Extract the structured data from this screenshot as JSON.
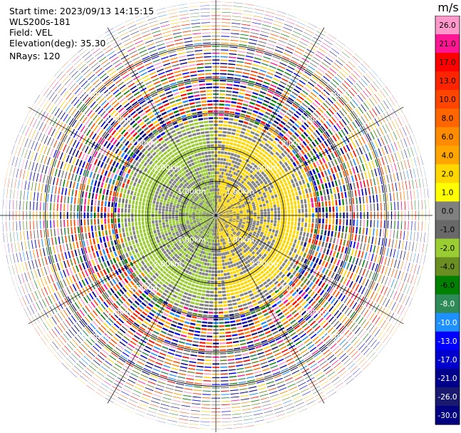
{
  "info": {
    "start_time": "Start time: 2023/09/13 14:15:15",
    "instrument": "WLS200s-181",
    "field": "Field: VEL",
    "elevation": "Elevation(deg): 35.30",
    "nrays": "NRays: 120"
  },
  "chart_data": {
    "type": "ppi_scan",
    "title": "",
    "field": "VEL",
    "units": "m/s",
    "range_rings": [
      {
        "label": "1.00km",
        "value": 1.0
      },
      {
        "label": "2.00km",
        "value": 2.0
      },
      {
        "label": "3.00km",
        "value": 3.0
      },
      {
        "label": "4.00km",
        "value": 4.0
      },
      {
        "label": "5.00km",
        "value": 5.0
      }
    ],
    "max_range_km": 6.35,
    "n_rays": 120,
    "gates": 63,
    "spokes_deg": [
      0,
      30,
      60,
      90,
      120,
      150,
      180,
      210,
      240,
      270,
      300,
      330
    ],
    "colorbar": {
      "unit": "m/s",
      "ticks": [
        "26.0",
        "21.0",
        "17.0",
        "13.0",
        "10.0",
        "8.0",
        "6.0",
        "4.0",
        "2.0",
        "1.0",
        "0.0",
        "-1.0",
        "-2.0",
        "-4.0",
        "-6.0",
        "-8.0",
        "-10.0",
        "-13.0",
        "-17.0",
        "-21.0",
        "-26.0",
        "-30.0"
      ],
      "bins": [
        {
          "min": 26,
          "max": 30,
          "color": "#ff99cc"
        },
        {
          "min": 21,
          "max": 26,
          "color": "#ff1493"
        },
        {
          "min": 17,
          "max": 21,
          "color": "#ff0000"
        },
        {
          "min": 13,
          "max": 17,
          "color": "#ff2400"
        },
        {
          "min": 10,
          "max": 13,
          "color": "#ff4500"
        },
        {
          "min": 8,
          "max": 10,
          "color": "#ff6600"
        },
        {
          "min": 6,
          "max": 8,
          "color": "#ff8c00"
        },
        {
          "min": 4,
          "max": 6,
          "color": "#ffa500"
        },
        {
          "min": 2,
          "max": 4,
          "color": "#ffd700"
        },
        {
          "min": 1,
          "max": 2,
          "color": "#ffff00"
        },
        {
          "min": 0,
          "max": 1,
          "color": "#808080"
        },
        {
          "min": -1,
          "max": 0,
          "color": "#696969"
        },
        {
          "min": -2,
          "max": -1,
          "color": "#9acd32"
        },
        {
          "min": -4,
          "max": -2,
          "color": "#6b8e23"
        },
        {
          "min": -6,
          "max": -4,
          "color": "#008000"
        },
        {
          "min": -8,
          "max": -6,
          "color": "#2e8b57"
        },
        {
          "min": -10,
          "max": -8,
          "color": "#1e90ff"
        },
        {
          "min": -13,
          "max": -10,
          "color": "#0000ff"
        },
        {
          "min": -17,
          "max": -13,
          "color": "#0000cd"
        },
        {
          "min": -21,
          "max": -17,
          "color": "#00008b"
        },
        {
          "min": -26,
          "max": -21,
          "color": "#191970"
        },
        {
          "min": -30,
          "max": -26,
          "color": "#000080"
        }
      ]
    },
    "pattern": {
      "near_field_max_km": 1.2,
      "noise_start_km": 2.7,
      "noise_full_km": 3.1,
      "positive_side_deg": 90,
      "positive_value": 2.5,
      "negative_value": -1.5,
      "zero_value": 0.5
    }
  }
}
